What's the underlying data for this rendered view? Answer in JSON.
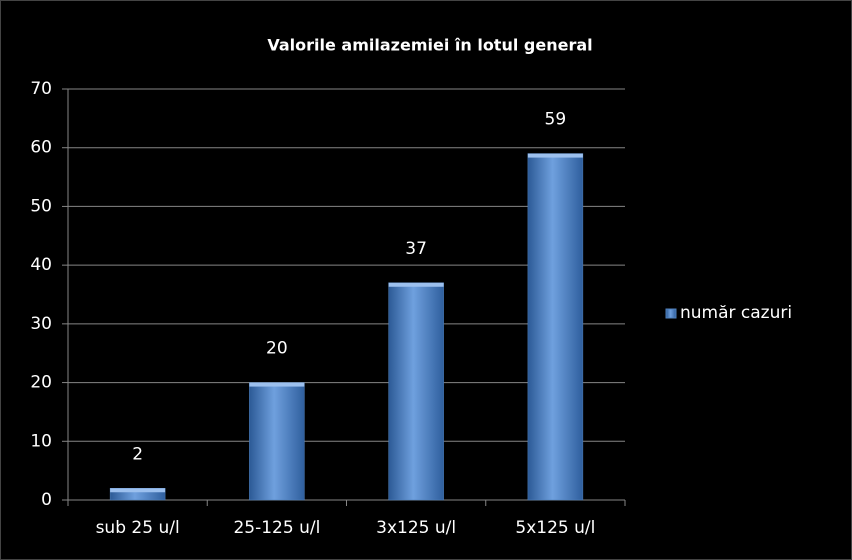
{
  "chart_data": {
    "type": "bar",
    "title": "Valorile amilazemiei în lotul general",
    "categories": [
      "sub 25 u/l",
      "25-125 u/l",
      "3x125 u/l",
      "5x125 u/l"
    ],
    "series": [
      {
        "name": "număr cazuri",
        "color": "#4f81bd",
        "values": [
          2,
          20,
          37,
          59
        ]
      }
    ],
    "ylim": [
      0,
      70
    ],
    "yticks": [
      0,
      10,
      20,
      30,
      40,
      50,
      60,
      70
    ],
    "grid": true,
    "legend": "right"
  }
}
